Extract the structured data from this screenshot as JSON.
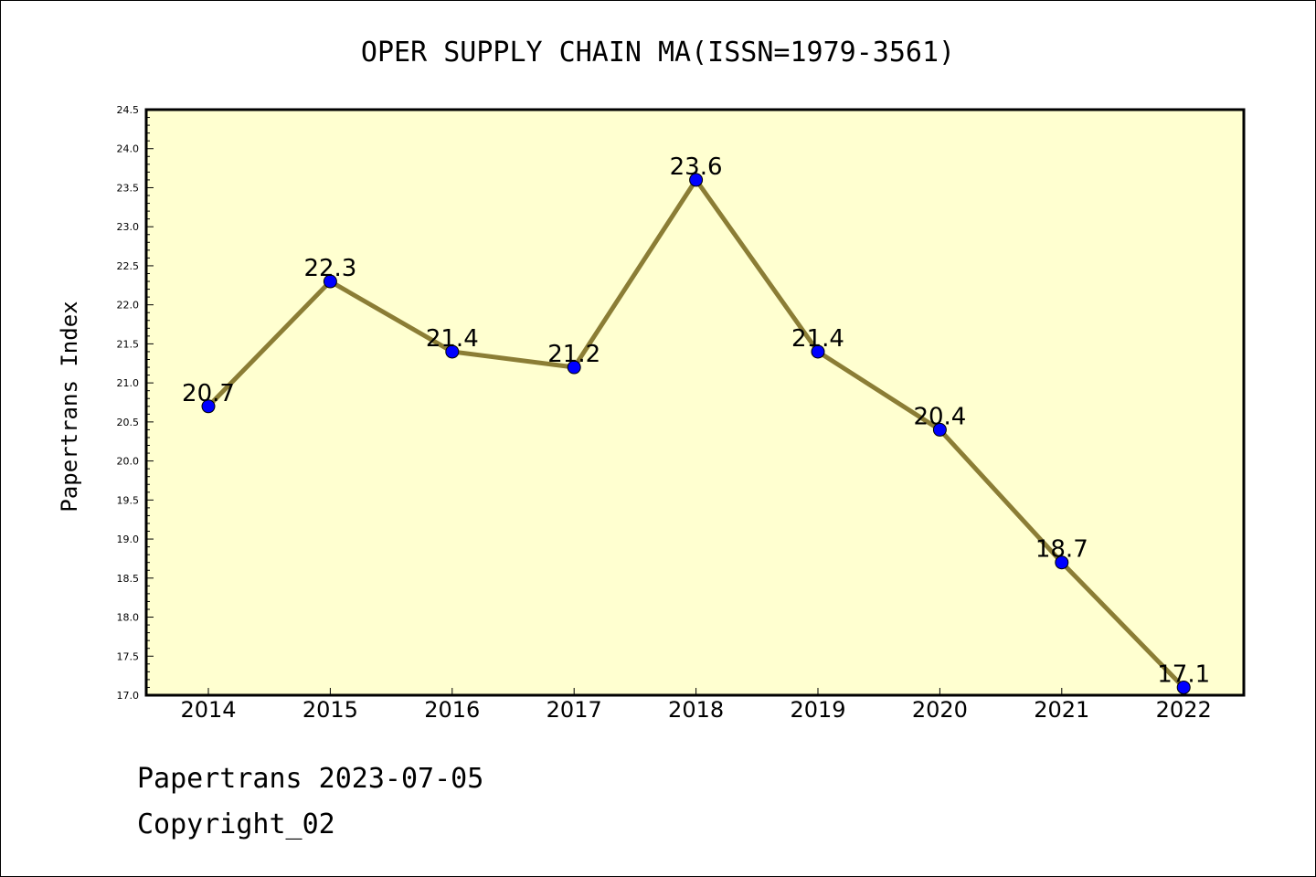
{
  "chart_data": {
    "type": "line",
    "title": "OPER SUPPLY CHAIN MA(ISSN=1979-3561)",
    "xlabel": "",
    "ylabel": "Papertrans Index",
    "categories": [
      "2014",
      "2015",
      "2016",
      "2017",
      "2018",
      "2019",
      "2020",
      "2021",
      "2022"
    ],
    "series": [
      {
        "values": [
          20.7,
          22.3,
          21.4,
          21.2,
          23.6,
          21.4,
          20.4,
          18.7,
          17.1
        ]
      }
    ],
    "data_labels": [
      "20.7",
      "22.3",
      "21.4",
      "21.2",
      "23.6",
      "21.4",
      "20.4",
      "18.7",
      "17.1"
    ],
    "ylim": [
      17.0,
      24.5
    ],
    "yticks": [
      "17.0",
      "17.5",
      "18.0",
      "18.5",
      "19.0",
      "19.5",
      "20.0",
      "20.5",
      "21.0",
      "21.5",
      "22.0",
      "22.5",
      "23.0",
      "23.5",
      "24.0",
      "24.5"
    ],
    "grid": false,
    "colors": {
      "plot_bg": "#ffffd0",
      "line": "#8b7d35",
      "marker": "#0000ff"
    }
  },
  "footer": {
    "line1": "Papertrans 2023-07-05",
    "line2": "Copyright_02"
  }
}
